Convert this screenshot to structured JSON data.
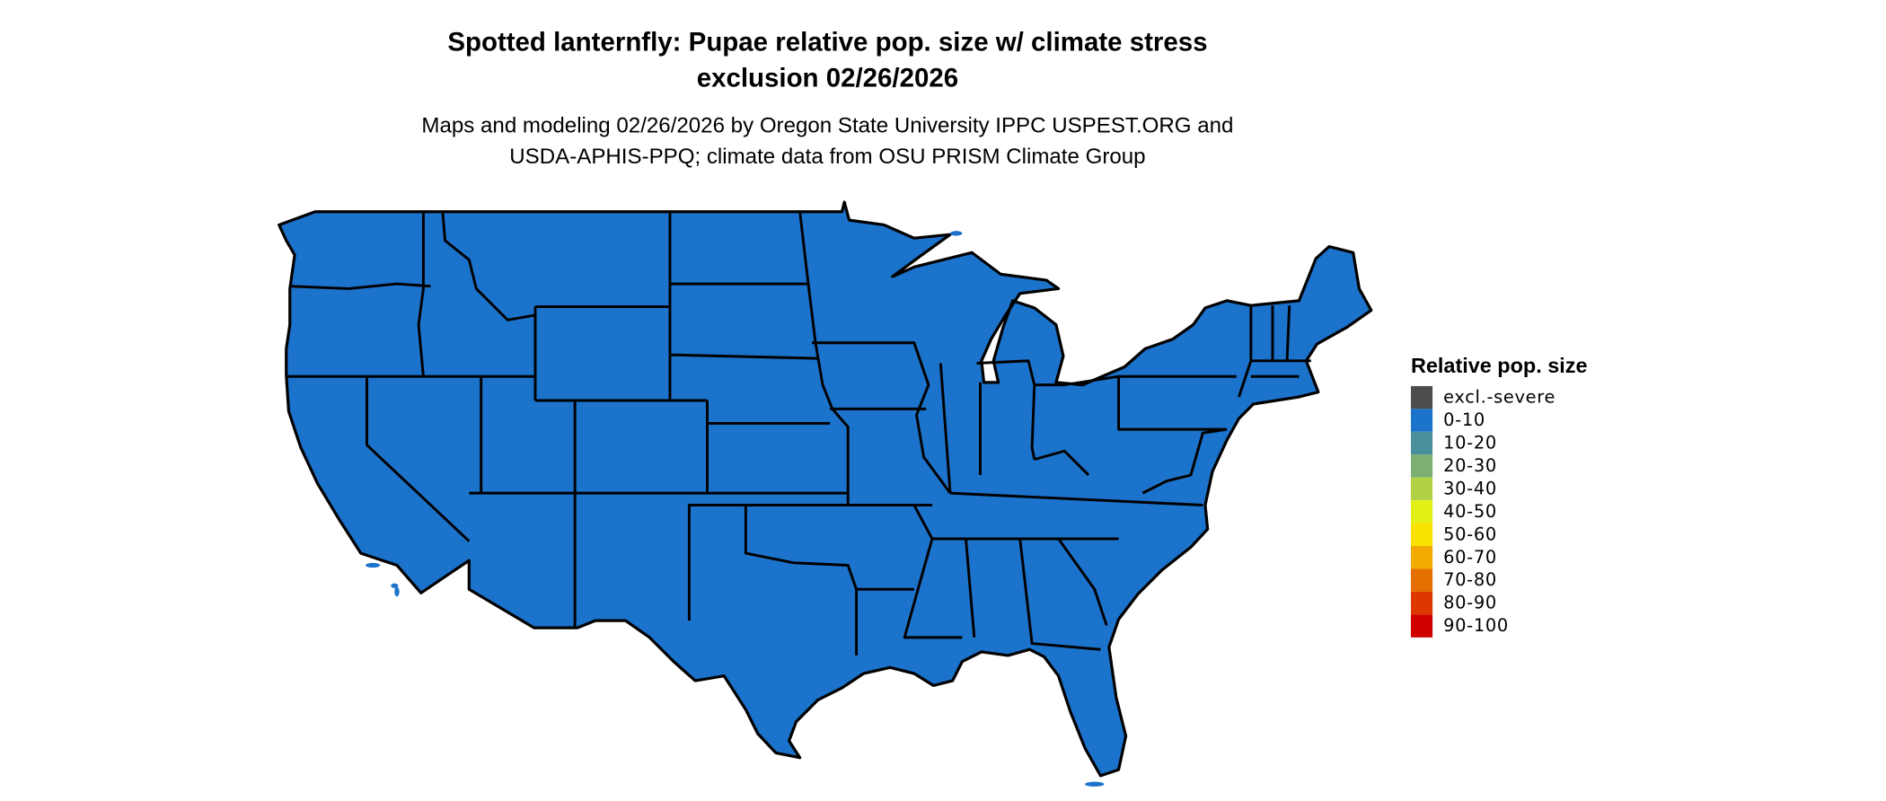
{
  "title": {
    "line1": "Spotted lanternfly: Pupae relative pop. size w/ climate stress",
    "line2": "exclusion 02/26/2026"
  },
  "subtitle": {
    "line1": "Maps and modeling 02/26/2026 by Oregon State University IPPC USPEST.ORG and",
    "line2": "USDA-APHIS-PPQ; climate data from OSU PRISM Climate Group"
  },
  "map": {
    "region": "Contiguous United States",
    "fill_category": "0-10",
    "fill_color": "#1c73cc",
    "border_color": "#000000"
  },
  "legend": {
    "title": "Relative pop. size",
    "items": [
      {
        "label": "excl.-severe",
        "color": "#4d4d4d"
      },
      {
        "label": "0-10",
        "color": "#1c73cc"
      },
      {
        "label": "10-20",
        "color": "#4a8f9c"
      },
      {
        "label": "20-30",
        "color": "#7eaf72"
      },
      {
        "label": "30-40",
        "color": "#b2d245"
      },
      {
        "label": "40-50",
        "color": "#e4f014"
      },
      {
        "label": "50-60",
        "color": "#f9e200"
      },
      {
        "label": "60-70",
        "color": "#f0aa00"
      },
      {
        "label": "70-80",
        "color": "#e57000"
      },
      {
        "label": "80-90",
        "color": "#dc3800"
      },
      {
        "label": "90-100",
        "color": "#d00000"
      }
    ]
  }
}
